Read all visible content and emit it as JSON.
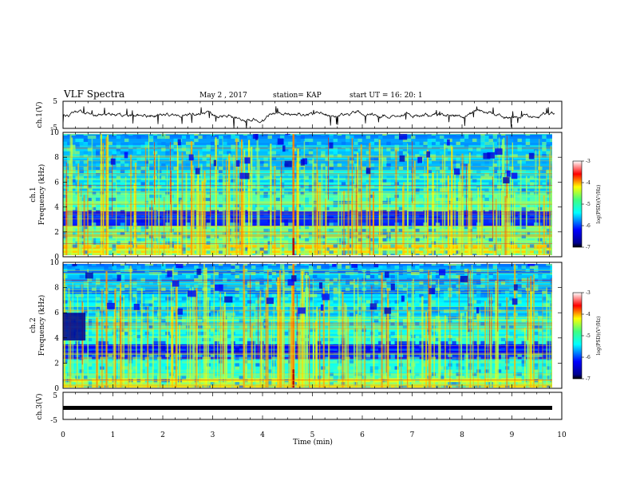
{
  "header": {
    "title": "VLF Spectra",
    "date": "May 2 , 2017",
    "station": "station= KAP",
    "start_time": "start UT = 16: 20: 1"
  },
  "chart_data": [
    {
      "type": "line",
      "panel": "ch1-waveform",
      "ylabel": "ch.1(V)",
      "yticks": [
        "5",
        "-5"
      ],
      "ylim": [
        -5,
        5
      ],
      "xlim": [
        0,
        9.85
      ],
      "description_level": "noisy voltage trace near 0 V"
    },
    {
      "type": "heatmap",
      "panel": "ch1-spectrogram",
      "ylabel_top": "ch.1",
      "ylabel": "Frequency (kHz)",
      "yticks": [
        "10",
        "8",
        "6",
        "4",
        "2",
        "0"
      ],
      "ylim": [
        0,
        10
      ],
      "xlim": [
        0,
        9.85
      ],
      "colorbar": {
        "label": "log(PSD)(V²/Hz)",
        "ticks": [
          "-3",
          "-4",
          "-5",
          "-6",
          "-7"
        ],
        "range": [
          -7,
          -3
        ]
      }
    },
    {
      "type": "heatmap",
      "panel": "ch2-spectrogram",
      "ylabel_top": "ch.2",
      "ylabel": "Frequency (kHz)",
      "yticks": [
        "10",
        "8",
        "6",
        "4",
        "2",
        "0"
      ],
      "ylim": [
        0,
        10
      ],
      "xlim": [
        0,
        9.85
      ],
      "colorbar": {
        "label": "log(PSD)(V²/Hz)",
        "ticks": [
          "-3",
          "-4",
          "-5",
          "-6",
          "-7"
        ],
        "range": [
          -7,
          -3
        ]
      }
    },
    {
      "type": "line",
      "panel": "ch3-waveform",
      "ylabel": "ch.3(V)",
      "yticks": [
        "5",
        "-5"
      ],
      "ylim": [
        -5,
        5
      ],
      "xlim": [
        0,
        9.85
      ],
      "level": 0
    }
  ],
  "xaxis": {
    "label": "Time (min)",
    "ticks": [
      "0",
      "1",
      "2",
      "3",
      "4",
      "5",
      "6",
      "7",
      "8",
      "9",
      "10"
    ],
    "range": [
      0,
      10
    ]
  },
  "colors": {
    "jet_low": "#00008f",
    "jet_mid": "#00ff80",
    "jet_high": "#800000"
  }
}
